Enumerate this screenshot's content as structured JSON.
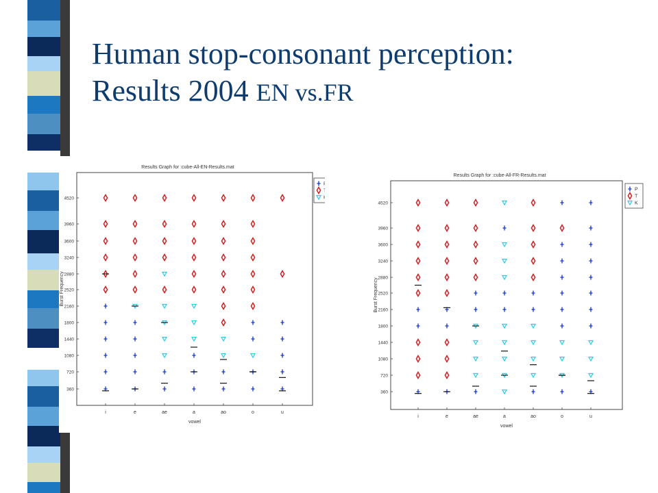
{
  "slide": {
    "title_line1": "Human stop-consonant perception:",
    "title_line2_main": "Results 2004 ",
    "title_line2_small": "EN vs.FR"
  },
  "colors": {
    "title": "#0f3c6e",
    "P": "#2040d0",
    "T": "#d02020",
    "K": "#30c8e8",
    "strip": [
      "#1a5fa0",
      "#5aa2d8",
      "#0b2a5a",
      "#a9d3f5",
      "#d8dcb8",
      "#1c78c0",
      "#4d8fc0",
      "#0d2f66",
      "#ffffff",
      "#8ec6ee"
    ]
  },
  "chart_data": [
    {
      "type": "scatter",
      "title": "Results Graph for :cube-All-EN-Results.mat",
      "xlabel": "vowel",
      "ylabel": "Burst Frequency",
      "categories": [
        "i",
        "e",
        "ae",
        "a",
        "ao",
        "o",
        "u"
      ],
      "y_ticks": [
        "360",
        "720",
        "1080",
        "1440",
        "1800",
        "2160",
        "2520",
        "2880",
        "3240",
        "3600",
        "3960",
        "4520"
      ],
      "legend": [
        "P",
        "T",
        "K"
      ],
      "legend_position": "top-right",
      "grid": false,
      "cells": [
        [
          "P",
          "P",
          "P",
          "P",
          "P",
          "P",
          "P"
        ],
        [
          "P",
          "P",
          "P",
          "P",
          "P",
          "P",
          "P"
        ],
        [
          "P",
          "P",
          "K",
          "P",
          "K",
          "K",
          "P"
        ],
        [
          "P",
          "P",
          "K",
          "K",
          "K",
          "P",
          "P"
        ],
        [
          "P",
          "P",
          "K",
          "K",
          "T",
          "P",
          "P"
        ],
        [
          "P",
          "K",
          "K",
          "K",
          "T",
          "T",
          ""
        ],
        [
          "T",
          "T",
          "T",
          "T",
          "T",
          "T",
          ""
        ],
        [
          "T",
          "T",
          "K",
          "T",
          "T",
          "T",
          "T"
        ],
        [
          "T",
          "T",
          "T",
          "T",
          "T",
          "T",
          ""
        ],
        [
          "T",
          "T",
          "T",
          "T",
          "T",
          "T",
          ""
        ],
        [
          "T",
          "T",
          "T",
          "T",
          "T",
          "T",
          ""
        ],
        [
          "T",
          "T",
          "T",
          "T",
          "T",
          "T",
          "T"
        ]
      ],
      "boundary_marks": [
        2880,
        2160,
        1800,
        1260,
        990,
        720,
        600
      ],
      "baseline_marks": [
        320,
        360,
        480,
        720,
        480,
        720,
        320
      ]
    },
    {
      "type": "scatter",
      "title": "Results Graph for :cube-All-FR-Results.mat",
      "xlabel": "vowel",
      "ylabel": "Burst Frequency",
      "categories": [
        "i",
        "e",
        "ae",
        "a",
        "ao",
        "o",
        "u"
      ],
      "y_ticks": [
        "360",
        "720",
        "1080",
        "1440",
        "1800",
        "2160",
        "2520",
        "2880",
        "3240",
        "3600",
        "3960",
        "4520"
      ],
      "legend": [
        "P",
        "T",
        "K"
      ],
      "legend_position": "top-right",
      "grid": false,
      "cells": [
        [
          "P",
          "P",
          "P",
          "K",
          "P",
          "P",
          "P"
        ],
        [
          "T",
          "T",
          "K",
          "K",
          "K",
          "K",
          "K"
        ],
        [
          "T",
          "T",
          "K",
          "K",
          "K",
          "K",
          "K"
        ],
        [
          "T",
          "T",
          "K",
          "K",
          "K",
          "K",
          "K"
        ],
        [
          "P",
          "P",
          "K",
          "K",
          "K",
          "P",
          "P"
        ],
        [
          "P",
          "P",
          "P",
          "P",
          "P",
          "P",
          "P"
        ],
        [
          "T",
          "T",
          "P",
          "P",
          "P",
          "P",
          "P"
        ],
        [
          "T",
          "T",
          "T",
          "K",
          "T",
          "P",
          "P"
        ],
        [
          "T",
          "T",
          "T",
          "K",
          "T",
          "P",
          "P"
        ],
        [
          "T",
          "T",
          "T",
          "K",
          "T",
          "P",
          "P"
        ],
        [
          "T",
          "T",
          "T",
          "P",
          "T",
          "T",
          "P"
        ],
        [
          "T",
          "T",
          "T",
          "K",
          "T",
          "P",
          "P"
        ]
      ],
      "boundary_marks": [
        2700,
        2200,
        1800,
        1250,
        950,
        720,
        600
      ],
      "baseline_marks": [
        320,
        360,
        480,
        720,
        480,
        720,
        320
      ]
    }
  ]
}
